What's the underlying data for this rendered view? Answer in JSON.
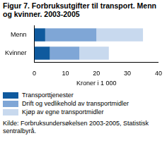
{
  "chart_data": {
    "type": "bar",
    "orientation": "horizontal",
    "stacked": true,
    "title": "Figur 7. Forbruksutgifter til transport. Menn og kvinner. 2003-2005",
    "categories": [
      "Menn",
      "Kvinner"
    ],
    "series": [
      {
        "name": "Transporttjenester",
        "color": "#0f5a9e",
        "values": [
          3.5,
          5
        ]
      },
      {
        "name": "Drift og vedlikehold av transportmidler",
        "color": "#7fa6d6",
        "values": [
          16.5,
          9.5
        ]
      },
      {
        "name": "Kjøp av egne transportmidler",
        "color": "#c8d9ee",
        "values": [
          15,
          9.5
        ]
      }
    ],
    "xlabel": "Kroner i 1 000",
    "xlim": [
      0,
      40
    ],
    "xticks": [
      0,
      10,
      20,
      30,
      40
    ],
    "grid": false,
    "legend": "bottom",
    "source": "Kilde: Forbruksundersøkelsen 2003-2005, Statistisk sentralbyrå."
  }
}
